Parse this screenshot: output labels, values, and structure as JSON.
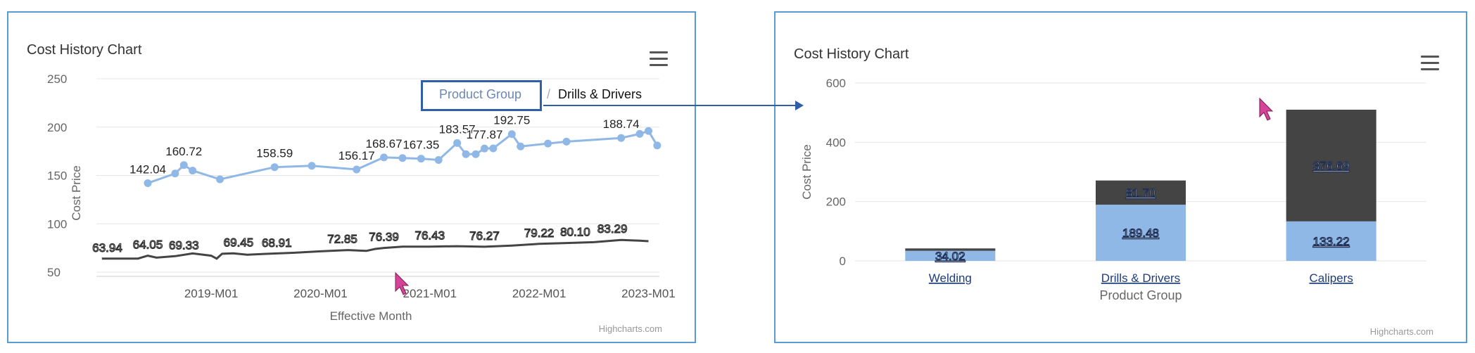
{
  "colors": {
    "accent": "#5b9bd5",
    "series_light": "#8fb8e6",
    "series_dark": "#444444",
    "breadcrumb_box": "#2e5fa8",
    "cursor": "#d6449a"
  },
  "left": {
    "title": "Cost History Chart",
    "credits": "Highcharts.com",
    "breadcrumb": {
      "link": "Product Group",
      "separator": "/",
      "current": "Drills & Drivers"
    }
  },
  "right": {
    "title": "Cost History Chart",
    "credits": "Highcharts.com"
  },
  "icons": [
    "menu-icon",
    "cursor-icon",
    "arrow-icon"
  ],
  "chart_data": [
    {
      "type": "line",
      "title": "Cost History Chart",
      "xlabel": "Effective Month",
      "ylabel": "Cost Price",
      "ylim": [
        50,
        250
      ],
      "yticks": [
        "50",
        "100",
        "150",
        "200",
        "250"
      ],
      "x_ticks": [
        "2019-M01",
        "2020-M01",
        "2021-M01",
        "2022-M01",
        "2023-M01"
      ],
      "x_tick_values": [
        2019.0,
        2020.0,
        2021.0,
        2022.0,
        2023.0
      ],
      "xlim": [
        2017.95,
        2023.1
      ],
      "grid": true,
      "series": [
        {
          "color": "#8fb8e6",
          "markers": true,
          "x": [
            2018.42,
            2018.67,
            2018.75,
            2018.83,
            2019.08,
            2019.58,
            2019.92,
            2020.33,
            2020.58,
            2020.75,
            2020.92,
            2021.08,
            2021.25,
            2021.33,
            2021.42,
            2021.5,
            2021.58,
            2021.75,
            2021.83,
            2022.08,
            2022.25,
            2022.75,
            2022.92,
            2023.0,
            2023.08
          ],
          "values": [
            142.04,
            152,
            160.72,
            155,
            146,
            158.59,
            160,
            156.17,
            168.67,
            168,
            167.35,
            166,
            183.57,
            172,
            172,
            177.87,
            178,
            192.75,
            180,
            183,
            185,
            188.74,
            193,
            196,
            181
          ],
          "labeled_indices": [
            0,
            2,
            5,
            7,
            8,
            10,
            12,
            15,
            17,
            21
          ],
          "labels": [
            "142.04",
            "160.72",
            "158.59",
            "156.17",
            "168.67",
            "167.35",
            "183.57",
            "177.87",
            "192.75",
            "188.74"
          ]
        },
        {
          "color": "#444444",
          "markers": false,
          "x": [
            2018.0,
            2018.17,
            2018.33,
            2018.42,
            2018.5,
            2018.67,
            2018.83,
            2019.0,
            2019.05,
            2019.1,
            2019.2,
            2019.33,
            2019.5,
            2019.75,
            2020.0,
            2020.25,
            2020.42,
            2020.5,
            2020.58,
            2020.75,
            2021.0,
            2021.25,
            2021.5,
            2021.75,
            2022.0,
            2022.25,
            2022.5,
            2022.75,
            2022.92,
            2023.0
          ],
          "values": [
            63.94,
            64.05,
            64.05,
            67,
            65,
            66.5,
            69.33,
            67,
            64,
            69,
            69.45,
            68,
            68.91,
            70,
            71.5,
            72.85,
            72,
            74,
            75,
            76.39,
            76.43,
            76.8,
            76.27,
            77.5,
            79.22,
            80.1,
            81,
            83.29,
            82.5,
            82
          ],
          "labels": [
            {
              "x": 2018.05,
              "text": "63.94"
            },
            {
              "x": 2018.42,
              "text": "64.05"
            },
            {
              "x": 2018.75,
              "text": "69.33"
            },
            {
              "x": 2019.25,
              "text": "69.45"
            },
            {
              "x": 2019.6,
              "text": "68.91"
            },
            {
              "x": 2020.2,
              "text": "72.85"
            },
            {
              "x": 2020.58,
              "text": "76.39"
            },
            {
              "x": 2021.0,
              "text": "76.43"
            },
            {
              "x": 2021.5,
              "text": "76.27"
            },
            {
              "x": 2022.0,
              "text": "79.22"
            },
            {
              "x": 2022.33,
              "text": "80.10"
            },
            {
              "x": 2022.67,
              "text": "83.29"
            }
          ]
        }
      ]
    },
    {
      "type": "bar",
      "stacked": true,
      "title": "Cost History Chart",
      "xlabel": "Product Group",
      "ylabel": "Cost Price",
      "ylim": [
        0,
        600
      ],
      "yticks": [
        "0",
        "200",
        "400",
        "600"
      ],
      "categories": [
        "Welding",
        "Drills & Drivers",
        "Calipers"
      ],
      "grid": true,
      "series": [
        {
          "color": "#8fb8e6",
          "values": [
            34.02,
            189.48,
            133.22
          ],
          "labels": [
            "34.02",
            "189.48",
            "133.22"
          ]
        },
        {
          "color": "#444444",
          "values": [
            8,
            81.7,
            376.69
          ],
          "labels": [
            "",
            "81.70",
            "376.69"
          ]
        }
      ]
    }
  ]
}
